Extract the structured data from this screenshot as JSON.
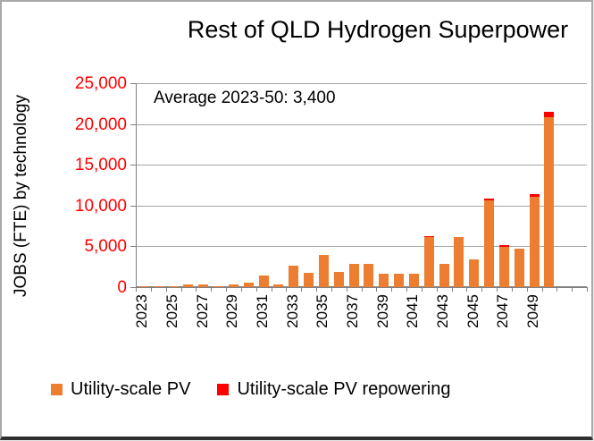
{
  "title": "Rest of QLD Hydrogen Superpower",
  "annotation": "Average 2023-50: 3,400",
  "y_axis": {
    "label": "JOBS (FTE) by technology",
    "tick_labels": [
      "25,000",
      "20,000",
      "15,000",
      "10,000",
      "5,000",
      "0"
    ],
    "tick_values": [
      25000,
      20000,
      15000,
      10000,
      5000,
      0
    ]
  },
  "x_axis": {
    "visible_tick_labels": [
      "2023",
      "2025",
      "2027",
      "2029",
      "2031",
      "2033",
      "2035",
      "2037",
      "2039",
      "2041",
      "2043",
      "2045",
      "2047",
      "2049"
    ]
  },
  "legend": [
    {
      "label": "Utility-scale PV",
      "color": "#ed7d31"
    },
    {
      "label": "Utility-scale PV repowering",
      "color": "#ff0000"
    }
  ],
  "colors": {
    "pv_orange": "#ed7d31",
    "repowering_red": "#ff0000",
    "ytick_red": "#ff0000",
    "gridline_gray": "#a6a6a6",
    "axis_gray": "#808080"
  },
  "chart_data": {
    "type": "bar",
    "stacked": true,
    "title": "Rest of QLD Hydrogen Superpower",
    "ylabel": "JOBS (FTE) by technology",
    "ylim": [
      0,
      25000
    ],
    "grid": true,
    "legend_position": "bottom-left",
    "annotation": "Average 2023-50: 3,400",
    "categories": [
      2023,
      2024,
      2025,
      2026,
      2027,
      2028,
      2029,
      2030,
      2031,
      2032,
      2033,
      2034,
      2035,
      2036,
      2037,
      2038,
      2039,
      2040,
      2041,
      2042,
      2043,
      2044,
      2045,
      2046,
      2047,
      2048,
      2049,
      2050
    ],
    "series": [
      {
        "name": "Utility-scale PV",
        "color": "#ed7d31",
        "values": [
          60,
          60,
          80,
          280,
          380,
          150,
          280,
          500,
          1400,
          380,
          2600,
          1700,
          3900,
          1900,
          2900,
          2850,
          1600,
          1600,
          1650,
          6100,
          2900,
          6150,
          3450,
          10600,
          4950,
          4700,
          11050,
          20800
        ]
      },
      {
        "name": "Utility-scale PV repowering",
        "color": "#ff0000",
        "values": [
          0,
          0,
          0,
          0,
          0,
          0,
          0,
          0,
          0,
          0,
          0,
          0,
          0,
          0,
          0,
          0,
          0,
          0,
          0,
          200,
          0,
          0,
          0,
          300,
          250,
          0,
          300,
          650
        ]
      }
    ]
  }
}
